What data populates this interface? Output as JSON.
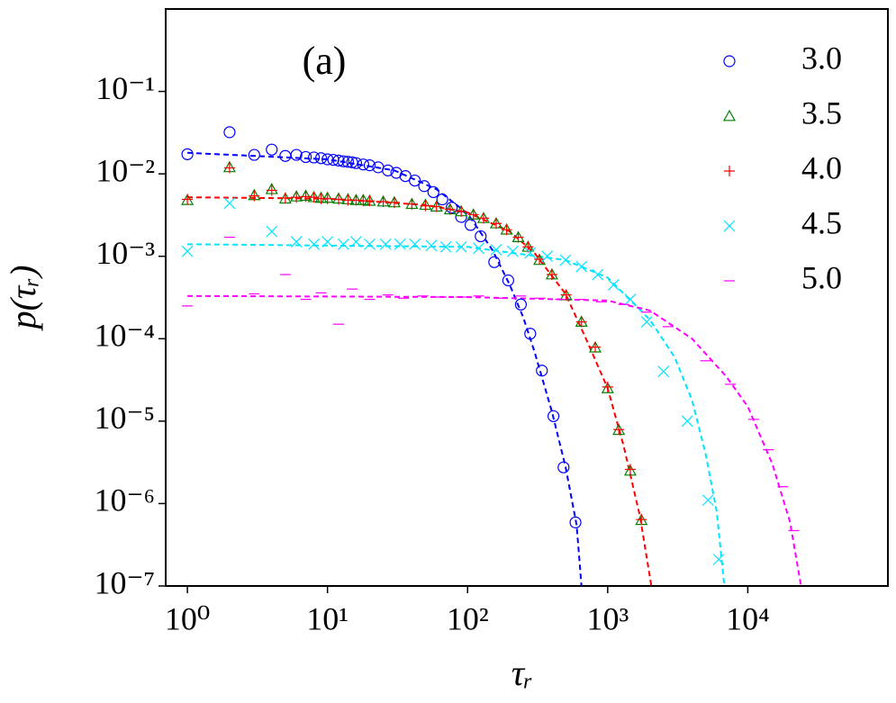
{
  "chart_data": {
    "type": "scatter",
    "annotation": "(a)",
    "xlabel": "τᵣ",
    "ylabel": "p(τᵣ)",
    "log_x": true,
    "log_y": true,
    "grid": false,
    "legend": "upper right",
    "xlim": [
      0.7,
      100000
    ],
    "ylim": [
      1e-07,
      1
    ],
    "xticks": [
      {
        "value": 1,
        "label": "10⁰"
      },
      {
        "value": 10,
        "label": "10¹"
      },
      {
        "value": 100,
        "label": "10²"
      },
      {
        "value": 1000,
        "label": "10³"
      },
      {
        "value": 10000,
        "label": "10⁴"
      }
    ],
    "yticks": [
      {
        "value": 1e-07,
        "label": "10⁻⁷"
      },
      {
        "value": 1e-06,
        "label": "10⁻⁶"
      },
      {
        "value": 1e-05,
        "label": "10⁻⁵"
      },
      {
        "value": 0.0001,
        "label": "10⁻⁴"
      },
      {
        "value": 0.001,
        "label": "10⁻³"
      },
      {
        "value": 0.01,
        "label": "10⁻²"
      },
      {
        "value": 0.1,
        "label": "10⁻¹"
      }
    ],
    "series": [
      {
        "name": "3.0",
        "color": "#0000ff",
        "marker": "o",
        "x": [
          1,
          2,
          3,
          4,
          5,
          6,
          7,
          8,
          9,
          10,
          11,
          12,
          13,
          14,
          15,
          16,
          18,
          20,
          23,
          27,
          31,
          36,
          42,
          49,
          57,
          66,
          77,
          90,
          105,
          124,
          155,
          195,
          240,
          280,
          339,
          410,
          484,
          589
        ],
        "values": [
          0.0173,
          0.032,
          0.017,
          0.0197,
          0.0165,
          0.017,
          0.016,
          0.0158,
          0.0155,
          0.015,
          0.0148,
          0.0145,
          0.0142,
          0.014,
          0.0138,
          0.0135,
          0.013,
          0.0127,
          0.012,
          0.011,
          0.0103,
          0.0094,
          0.0083,
          0.0071,
          0.006,
          0.0049,
          0.0039,
          0.003,
          0.0024,
          0.00175,
          0.00085,
          0.00051,
          0.00026,
          0.000115,
          4.1e-05,
          1.15e-05,
          2.75e-06,
          5.9e-07
        ]
      },
      {
        "name": "3.5",
        "color": "#008000",
        "marker": "^",
        "x": [
          1,
          2,
          3,
          4,
          5,
          6,
          7,
          8,
          9,
          10,
          12,
          14,
          16,
          18,
          20,
          25,
          30,
          40,
          50,
          60,
          75,
          90,
          110,
          130,
          160,
          190,
          230,
          270,
          326,
          400,
          505,
          650,
          815,
          1000,
          1200,
          1450,
          1740
        ],
        "values": [
          0.0048,
          0.012,
          0.0055,
          0.0065,
          0.005,
          0.0053,
          0.0054,
          0.0052,
          0.0051,
          0.0051,
          0.005,
          0.0049,
          0.0048,
          0.0048,
          0.0047,
          0.0046,
          0.0045,
          0.0043,
          0.0042,
          0.004,
          0.0037,
          0.0035,
          0.0032,
          0.0029,
          0.0025,
          0.0021,
          0.0017,
          0.0013,
          0.0009,
          0.0006,
          0.000335,
          0.00016,
          7.8e-05,
          2.5e-05,
          7.8e-06,
          2.5e-06,
          6.3e-07
        ]
      },
      {
        "name": "4.0",
        "color": "#ff0000",
        "marker": "+",
        "x": [
          1,
          2,
          3,
          4,
          5,
          6,
          7,
          8,
          9,
          10,
          12,
          14,
          16,
          18,
          20,
          25,
          30,
          40,
          50,
          60,
          75,
          90,
          110,
          130,
          160,
          190,
          230,
          270,
          326,
          400,
          505,
          650,
          815,
          1000,
          1200,
          1450,
          1740
        ],
        "values": [
          0.0049,
          0.0118,
          0.0054,
          0.0063,
          0.0051,
          0.0052,
          0.0053,
          0.0052,
          0.005,
          0.005,
          0.0049,
          0.0048,
          0.0048,
          0.0047,
          0.0047,
          0.0046,
          0.0045,
          0.0043,
          0.0041,
          0.004,
          0.0037,
          0.0035,
          0.0032,
          0.0029,
          0.0025,
          0.0021,
          0.0017,
          0.0013,
          0.00092,
          0.0006,
          0.00034,
          0.00016,
          7.9e-05,
          2.6e-05,
          7.9e-06,
          2.6e-06,
          6.4e-07
        ]
      },
      {
        "name": "4.5",
        "color": "#00e5ff",
        "marker": "x",
        "x": [
          1,
          2,
          4,
          6,
          8,
          10,
          13,
          16,
          20,
          26,
          33,
          42,
          55,
          70,
          90,
          120,
          160,
          210,
          280,
          370,
          500,
          650,
          850,
          1100,
          1450,
          1900,
          2500,
          3700,
          5200,
          6200
        ],
        "values": [
          0.00115,
          0.0044,
          0.002,
          0.0015,
          0.0014,
          0.0015,
          0.0014,
          0.0015,
          0.0014,
          0.0014,
          0.0014,
          0.0014,
          0.00135,
          0.0013,
          0.0013,
          0.00125,
          0.0012,
          0.00115,
          0.0011,
          0.001,
          0.0009,
          0.00075,
          0.0006,
          0.00045,
          0.0003,
          0.00016,
          4e-05,
          1e-05,
          1.1e-06,
          2.1e-07
        ]
      },
      {
        "name": "5.0",
        "color": "#ff00ff",
        "marker": "_",
        "x": [
          1,
          2,
          3,
          5,
          7,
          9,
          12,
          15,
          20,
          27,
          35,
          48,
          65,
          90,
          120,
          170,
          240,
          330,
          460,
          640,
          900,
          1300,
          1900,
          2700,
          5000,
          7500,
          11000,
          14000,
          17800,
          21300
        ],
        "values": [
          0.00025,
          0.0017,
          0.00035,
          0.0006,
          0.0003,
          0.00036,
          0.00015,
          0.0004,
          0.0003,
          0.00034,
          0.00031,
          0.00033,
          0.00032,
          0.00032,
          0.00033,
          0.00031,
          0.00033,
          0.00031,
          0.0003,
          0.0003,
          0.00028,
          0.00026,
          0.00021,
          0.00014,
          5.4e-05,
          2.8e-05,
          1.05e-05,
          4.5e-06,
          1.6e-06,
          4.7e-07
        ]
      }
    ],
    "fits": [
      {
        "color": "#0000ff",
        "x": [
          1,
          10,
          30,
          60,
          100,
          150,
          200,
          250,
          300,
          400,
          500,
          600,
          650
        ],
        "values": [
          0.018,
          0.015,
          0.011,
          0.0065,
          0.0033,
          0.0012,
          0.00045,
          0.00018,
          7e-05,
          1.3e-05,
          2.8e-06,
          5.5e-07,
          1e-07
        ]
      },
      {
        "color": "#ff0000",
        "x": [
          1,
          10,
          50,
          100,
          200,
          300,
          500,
          700,
          1000,
          1300,
          1700,
          2050
        ],
        "values": [
          0.0052,
          0.005,
          0.0042,
          0.0034,
          0.002,
          0.0011,
          0.00035,
          0.0001,
          2.5e-05,
          5e-06,
          7e-07,
          1e-07
        ]
      },
      {
        "color": "#00e5ff",
        "x": [
          1,
          100,
          500,
          1000,
          2000,
          3000,
          4000,
          5000,
          6000,
          6800
        ],
        "values": [
          0.0014,
          0.0013,
          0.0009,
          0.00055,
          0.00017,
          6e-05,
          1.8e-05,
          4e-06,
          8e-07,
          1e-07
        ]
      },
      {
        "color": "#ff00ff",
        "x": [
          1,
          100,
          1000,
          2000,
          4000,
          7000,
          10000,
          15000,
          20000,
          24000
        ],
        "values": [
          0.00033,
          0.00032,
          0.00029,
          0.00022,
          0.0001,
          3.5e-05,
          1.5e-05,
          3e-06,
          6e-07,
          1e-07
        ]
      }
    ]
  }
}
